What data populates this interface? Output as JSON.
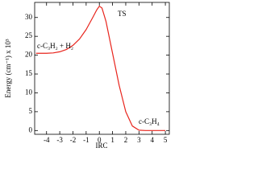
{
  "chart_data": {
    "type": "line",
    "x_label": "IRC",
    "y_label": "Energy (cm⁻¹) x 10³",
    "annotations": [
      "TS",
      "c-C₃H₂ + H₂",
      "c-C₃H₄"
    ],
    "x": [
      -4.8,
      -4,
      -3.5,
      -3,
      -2.5,
      -2,
      -1.5,
      -1,
      -0.5,
      -0.2,
      0,
      0.2,
      0.5,
      1,
      1.5,
      2,
      2.5,
      3,
      3.5,
      4,
      5
    ],
    "series": [
      {
        "color": "#e8241c",
        "values": [
          20.5,
          20.5,
          20.6,
          20.9,
          21.5,
          22.6,
          24.3,
          26.8,
          30,
          32,
          33,
          32.5,
          29,
          20.5,
          12,
          5,
          1.2,
          0.1,
          0,
          0,
          0
        ]
      }
    ],
    "xlim": [
      -4.9,
      5.3
    ],
    "ylim": [
      -1,
      34
    ],
    "xticks": [
      -4,
      -3,
      -2,
      -1,
      0,
      1,
      2,
      3,
      4,
      5
    ],
    "yticks": [
      0,
      5,
      10,
      15,
      20,
      25,
      30
    ]
  }
}
